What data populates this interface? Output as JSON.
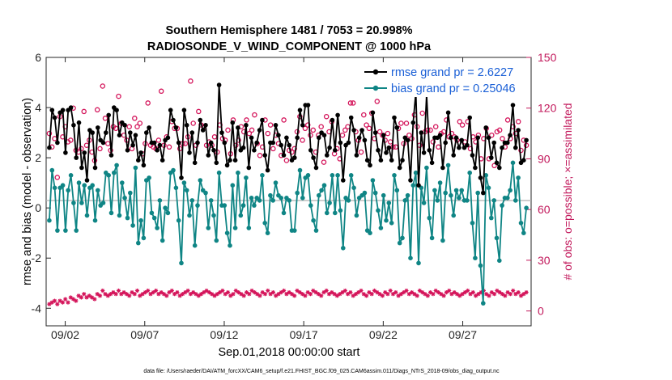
{
  "chart_data": {
    "type": "line",
    "title_line1": "Southern Hemisphere 1481 / 7053 = 20.998%",
    "title_line2": "RADIOSONDE_V_WIND_COMPONENT @ 1000 hPa",
    "xlabel": "Sep.01,2018 00:00:00 start",
    "ylabel_left": "rmse and bias (model - observation)",
    "ylabel_right": "# of obs: o=possible; ×=assimilated",
    "ylim_left": [
      -4.7,
      6
    ],
    "ylim_right": [
      -8.8,
      150
    ],
    "xlim": [
      0.8,
      31.3
    ],
    "left_ticks": [
      "-4",
      "-2",
      "0",
      "2",
      "4",
      "6"
    ],
    "right_ticks": [
      "0",
      "30",
      "60",
      "90",
      "120",
      "150"
    ],
    "x_ticks": [
      {
        "x": 2,
        "label": "09/02"
      },
      {
        "x": 7,
        "label": "09/07"
      },
      {
        "x": 12,
        "label": "09/12"
      },
      {
        "x": 17,
        "label": "09/17"
      },
      {
        "x": 22,
        "label": "09/22"
      },
      {
        "x": 27,
        "label": "09/27"
      }
    ],
    "legend": {
      "location": "top-right",
      "entries": [
        "rmse grand pr = 2.6227",
        "bias grand pr = 0.25046"
      ]
    },
    "colors": {
      "rmse": "#000000",
      "bias": "#0f8585",
      "obs": "#d4145a",
      "zero_line": "#b0b0b0"
    },
    "series": [
      {
        "name": "rmse",
        "values": [
          2.4,
          3.9,
          3.6,
          2.6,
          3.8,
          3.9,
          2.2,
          3.9,
          4.0,
          3.3,
          2.0,
          3.4,
          1.6,
          2.2,
          1.1,
          3.1,
          3.0,
          1.6,
          3.2,
          2.7,
          2.6,
          3.0,
          3.7,
          2.1,
          4.0,
          3.9,
          2.9,
          3.4,
          3.3,
          2.3,
          3.0,
          2.5,
          2.9,
          1.9,
          2.2,
          1.7,
          3.0,
          3.2,
          2.6,
          2.6,
          2.3,
          2.5,
          1.9,
          2.7,
          2.8,
          3.9,
          3.5,
          3.2,
          2.6,
          1.2,
          3.9,
          3.3,
          2.2,
          3.0,
          1.8,
          2.6,
          3.5,
          3.1,
          3.3,
          2.1,
          2.6,
          2.3,
          1.8,
          4.9,
          3.0,
          2.6,
          1.7,
          1.9,
          3.4,
          1.9,
          3.2,
          2.3,
          2.4,
          3.3,
          1.6,
          2.8,
          2.3,
          2.6,
          3.1,
          3.5,
          2.1,
          1.5,
          2.6,
          2.6,
          3.3,
          2.9,
          2.5,
          2.1,
          2.8,
          2.5,
          1.9,
          2.0,
          2.8,
          3.9,
          3.3,
          4.1,
          4.1,
          2.3,
          2.0,
          1.6,
          2.8,
          3.0,
          2.9,
          2.1,
          2.4,
          3.5,
          2.3,
          3.7,
          2.6,
          1.1,
          2.5,
          2.6,
          3.6,
          3.1,
          2.1,
          2.8,
          3.1,
          2.7,
          1.9,
          1.7,
          3.8,
          3.0,
          2.3,
          1.9,
          2.9,
          2.2,
          2.4,
          1.9,
          3.6,
          3.2,
          1.6,
          1.9,
          2.8,
          2.7,
          1.1,
          3.4,
          4.6,
          0.9,
          3.0,
          2.2,
          4.5,
          2.3,
          1.8,
          2.8,
          2.8,
          2.9,
          1.6,
          2.6,
          3.8,
          2.8,
          2.1,
          2.8,
          2.4,
          2.7,
          2.4,
          2.5,
          3.6,
          2.1,
          1.6,
          2.8,
          1.2,
          0.6,
          3.2,
          2.8,
          2.0,
          2.6,
          1.8,
          1.6,
          2.4,
          2.6,
          2.6,
          2.9,
          4.1,
          2.4,
          3.1,
          1.8,
          1.9,
          2.7
        ]
      },
      {
        "name": "bias",
        "values": [
          -0.5,
          1.5,
          0.8,
          -0.9,
          0.8,
          0.9,
          -0.9,
          0.7,
          1.3,
          0.2,
          -0.9,
          1.0,
          0.2,
          0.9,
          -0.3,
          0.8,
          0.9,
          -0.5,
          0.7,
          0.1,
          0.2,
          1.4,
          1.3,
          -0.2,
          1.4,
          1.7,
          -0.3,
          1.0,
          0.4,
          -0.4,
          0.6,
          -0.7,
          1.6,
          -1.4,
          -0.5,
          -1.2,
          1.1,
          1.2,
          -0.2,
          -0.4,
          -0.8,
          0.3,
          -1.3,
          0.0,
          -0.2,
          1.4,
          1.5,
          0.8,
          -0.5,
          -2.2,
          1.0,
          0.7,
          -0.3,
          0.3,
          -1.5,
          0.1,
          1.1,
          0.7,
          0.6,
          -0.8,
          0.3,
          -0.3,
          -1.3,
          1.4,
          0.1,
          0.1,
          -1.0,
          -1.5,
          0.9,
          -0.8,
          1.4,
          -0.3,
          0.1,
          1.2,
          -0.8,
          0.4,
          0.1,
          0.4,
          0.3,
          1.3,
          -0.6,
          -1.0,
          0.5,
          0.3,
          1.0,
          0.5,
          0.4,
          -0.2,
          0.4,
          0.3,
          -0.9,
          -0.9,
          0.6,
          1.5,
          0.4,
          1.2,
          1.3,
          0.1,
          -0.5,
          -0.9,
          0.5,
          0.7,
          0.9,
          -0.2,
          0.2,
          1.3,
          -0.2,
          1.3,
          -0.1,
          -1.6,
          0.4,
          0.3,
          1.3,
          0.8,
          -0.3,
          0.4,
          0.5,
          0.6,
          -0.9,
          -1.0,
          1.1,
          0.6,
          -0.1,
          -0.8,
          0.5,
          -0.5,
          0.2,
          -0.6,
          1.3,
          0.7,
          -1.4,
          -1.2,
          0.3,
          0.5,
          -2.0,
          0.9,
          1.4,
          -2.2,
          0.8,
          0.2,
          1.6,
          -0.4,
          -1.2,
          0.7,
          0.3,
          1.0,
          -1.3,
          0.6,
          1.7,
          0.5,
          -0.3,
          0.7,
          0.4,
          0.7,
          0.3,
          0.3,
          1.4,
          -0.6,
          -2.0,
          0.6,
          -2.3,
          -3.8,
          1.3,
          0.8,
          -0.4,
          0.3,
          -1.2,
          -2.1,
          0.1,
          0.4,
          0.4,
          0.7,
          1.8,
          0.3,
          1.2,
          -0.6,
          -1.0,
          0.0
        ]
      },
      {
        "name": "possible",
        "values": [
          105,
          97,
          102,
          79,
          115,
          103,
          109,
          100,
          101,
          120,
          95,
          94,
          96,
          118,
          98,
          101,
          94,
          89,
          119,
          96,
          133,
          114,
          99,
          95,
          109,
          108,
          127,
          111,
          104,
          101,
          109,
          96,
          114,
          109,
          111,
          93,
          99,
          123,
          98,
          97,
          96,
          101,
          130,
          98,
          103,
          97,
          112,
          108,
          108,
          96,
          99,
          99,
          103,
          136,
          111,
          98,
          118,
          110,
          109,
          98,
          100,
          98,
          103,
          94,
          110,
          102,
          101,
          107,
          93,
          113,
          98,
          101,
          109,
          106,
          113,
          105,
          107,
          116,
          99,
          92,
          97,
          113,
          105,
          110,
          96,
          104,
          99,
          92,
          113,
          89,
          95,
          94,
          96,
          106,
          115,
          101,
          108,
          110,
          104,
          107,
          94,
          104,
          109,
          88,
          115,
          106,
          112,
          93,
          96,
          90,
          104,
          107,
          109,
          123,
          123,
          106,
          101,
          94,
          116,
          110,
          108,
          117,
          102,
          124,
          106,
          104,
          101,
          105,
          100,
          97,
          97,
          108,
          111,
          99,
          111,
          104,
          102,
          116,
          109,
          98,
          117,
          106,
          107,
          107,
          100,
          109,
          97,
          105,
          106,
          113,
          103,
          105,
          103,
          101,
          112,
          110,
          100,
          112,
          96,
          103,
          100,
          104,
          90,
          102,
          108,
          90,
          104,
          86,
          106,
          107,
          102,
          97,
          113,
          102,
          109,
          105,
          112,
          95,
          101,
          98
        ]
      },
      {
        "name": "assimilated",
        "values": [
          4,
          5,
          6,
          4,
          6,
          5,
          7,
          5,
          8,
          7,
          6,
          9,
          8,
          10,
          8,
          9,
          8,
          7,
          10,
          9,
          12,
          10,
          9,
          10,
          11,
          10,
          12,
          10,
          11,
          10,
          9,
          11,
          10,
          12,
          9,
          10,
          11,
          12,
          10,
          11,
          12,
          10,
          11,
          10,
          9,
          11,
          12,
          10,
          11,
          9,
          10,
          11,
          12,
          10,
          11,
          10,
          9,
          10,
          11,
          12,
          11,
          10,
          9,
          10,
          11,
          12,
          10,
          11,
          9,
          10,
          12,
          11,
          10,
          9,
          11,
          10,
          12,
          11,
          10,
          9,
          11,
          10,
          12,
          10,
          11,
          9,
          10,
          11,
          12,
          10,
          11,
          10,
          9,
          12,
          11,
          10,
          9,
          11,
          10,
          12,
          11,
          10,
          9,
          11,
          12,
          10,
          11,
          10,
          9,
          10,
          11,
          12,
          10,
          11,
          9,
          10,
          11,
          12,
          10,
          9,
          11,
          10,
          12,
          11,
          10,
          9,
          11,
          10,
          12,
          10,
          11,
          9,
          10,
          11,
          12,
          10,
          11,
          10,
          9,
          12,
          11,
          10,
          9,
          11,
          10,
          12,
          11,
          10,
          9,
          11,
          12,
          10,
          11,
          10,
          9,
          10,
          11,
          12,
          10,
          11,
          9,
          10,
          11,
          12,
          10,
          9,
          11,
          10,
          12,
          11,
          10,
          9,
          11,
          10,
          12,
          10,
          11,
          9,
          10,
          11
        ]
      }
    ]
  },
  "footer_text": "data file: /Users/raeder/DAI/ATM_forcXX/CAM6_setup/f.e21.FHIST_BGC.f09_025.CAM6assim.011/Diags_NTrS_2018-09/obs_diag_output.nc"
}
